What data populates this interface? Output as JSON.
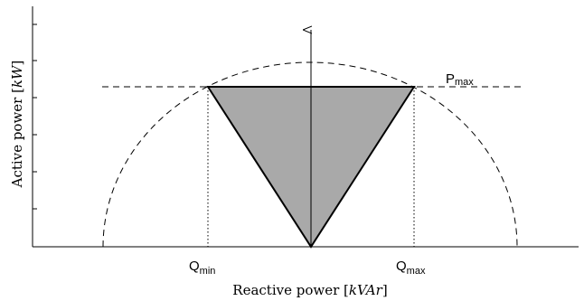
{
  "figure": {
    "x_axis_label": {
      "text": "Reactive power ",
      "unit": "kVAr"
    },
    "y_axis_label": {
      "text": "Active power ",
      "unit": "kW"
    },
    "labels": {
      "q_min": {
        "base": "Q",
        "sub": "min"
      },
      "q_max": {
        "base": "Q",
        "sub": "max"
      },
      "p_max": {
        "base": "P",
        "sub": "max"
      }
    },
    "colors": {
      "triangle_fill": "#a9a9a9",
      "lines": "#000000",
      "background": "#ffffff"
    }
  }
}
